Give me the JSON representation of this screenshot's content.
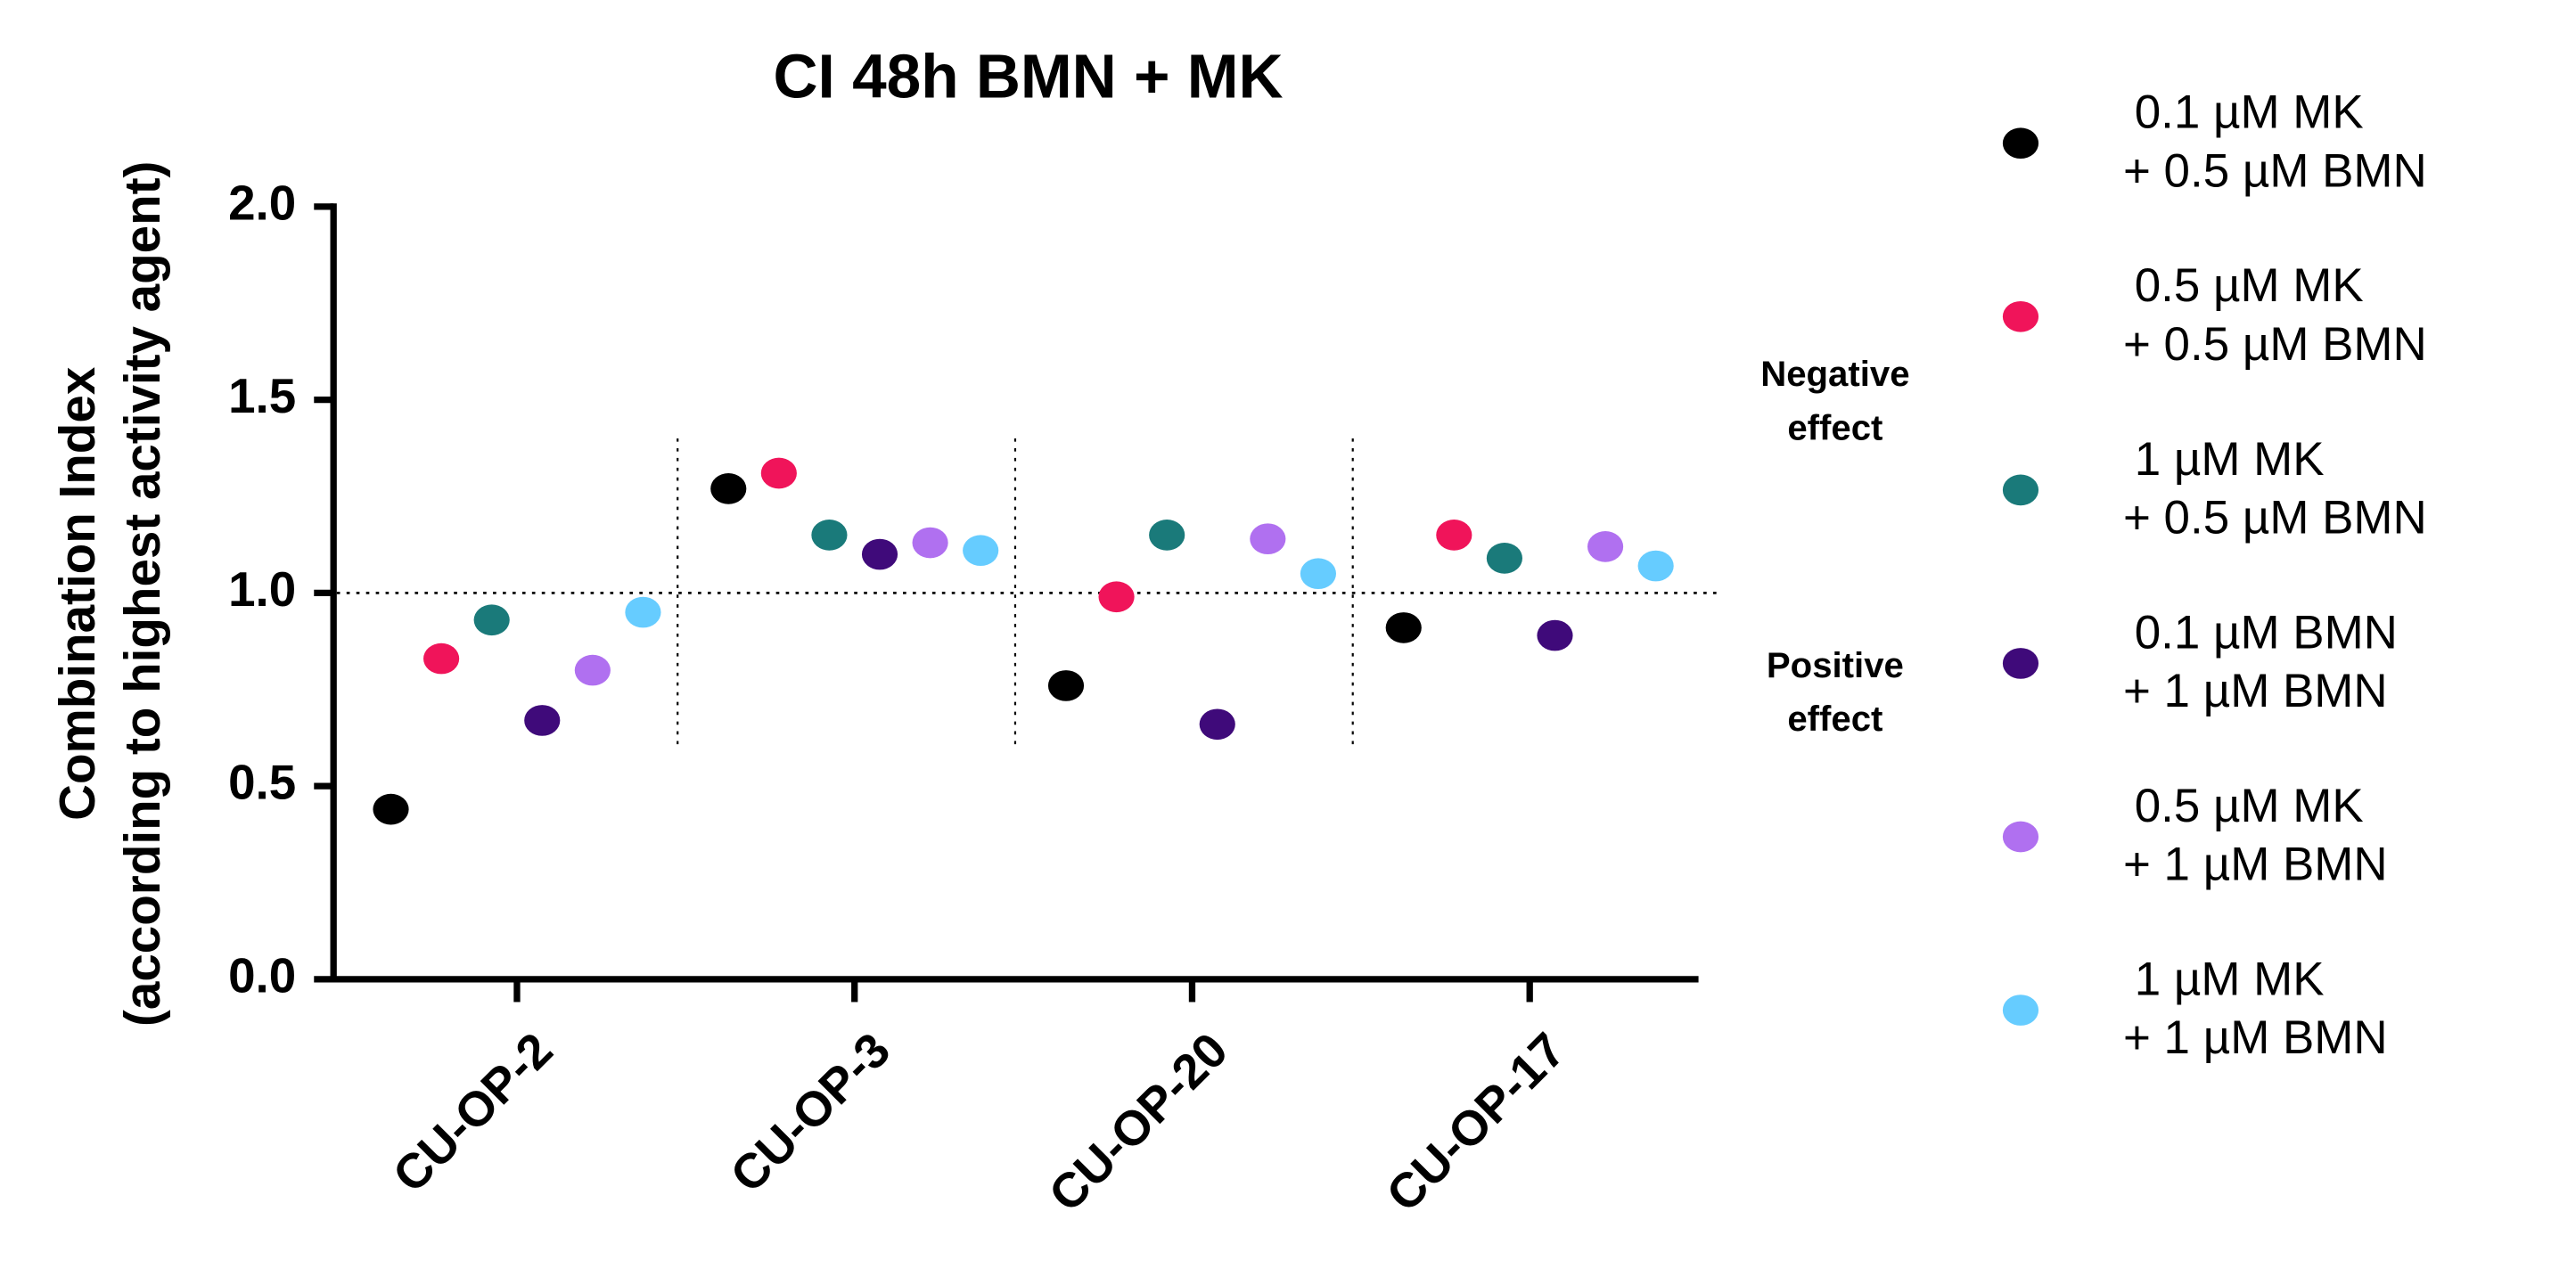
{
  "chart_data": {
    "type": "dot",
    "title": "CI 48h BMN + MK",
    "ylabel": [
      "Combination Index",
      "(according to highest activity agent)"
    ],
    "categories": [
      "CU-OP-2",
      "CU-OP-3",
      "CU-OP-20",
      "CU-OP-17"
    ],
    "series": [
      {
        "name": "0.1 µM MK + 0.5 µM BMN",
        "color": "#000000",
        "values": [
          0.44,
          1.27,
          0.76,
          0.91
        ]
      },
      {
        "name": "0.5 µM MK + 0.5 µM BMN",
        "color": "#f0145a",
        "values": [
          0.83,
          1.31,
          0.99,
          1.15
        ]
      },
      {
        "name": "1 µM MK + 0.5 µM BMN",
        "color": "#1a7a7a",
        "values": [
          0.93,
          1.15,
          1.15,
          1.09
        ]
      },
      {
        "name": "0.1 µM BMN + 1 µM BMN",
        "color": "#3f0a7a",
        "values": [
          0.67,
          1.1,
          0.66,
          0.89
        ]
      },
      {
        "name": "0.5 µM MK + 1 µM BMN",
        "color": "#b070f0",
        "values": [
          0.8,
          1.13,
          1.14,
          1.12
        ]
      },
      {
        "name": "1 µM MK + 1 µM BMN",
        "color": "#66ccff",
        "values": [
          0.95,
          1.11,
          1.05,
          1.07
        ]
      }
    ],
    "ylim": [
      0,
      2
    ],
    "yticks": [
      {
        "value": 0,
        "label": "0.0"
      },
      0.5,
      {
        "value": 1,
        "label": "1.0"
      },
      1.5,
      {
        "value": 2,
        "label": "2.0"
      }
    ],
    "reference_line": 1,
    "annotations": [
      [
        "Negative",
        "effect"
      ],
      [
        "Positive",
        "effect"
      ]
    ],
    "legend": "right"
  }
}
